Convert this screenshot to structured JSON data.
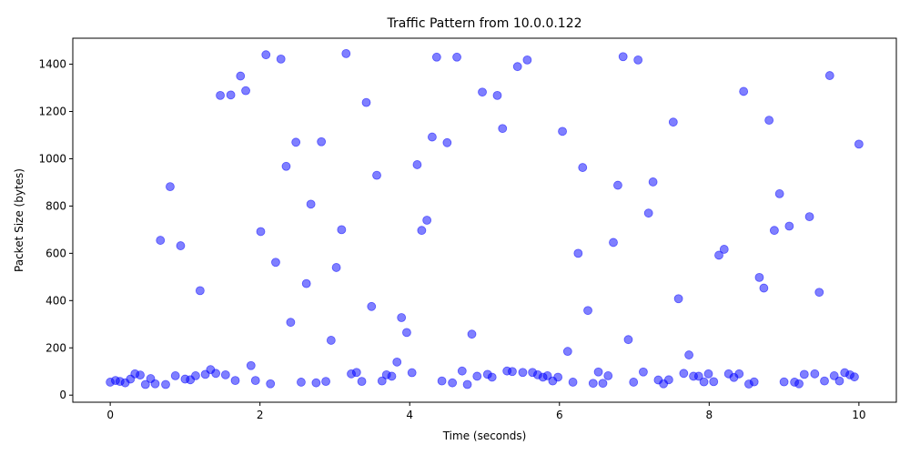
{
  "chart_data": {
    "type": "scatter",
    "title": "Traffic Pattern from 10.0.0.122",
    "xlabel": "Time (seconds)",
    "ylabel": "Packet Size (bytes)",
    "xlim": [
      -0.5,
      10.5
    ],
    "ylim": [
      -30,
      1510
    ],
    "xticks": [
      0,
      2,
      4,
      6,
      8,
      10
    ],
    "yticks": [
      0,
      200,
      400,
      600,
      800,
      1000,
      1200,
      1400
    ],
    "grid": false,
    "point_color": "#0000ff",
    "point_opacity": 0.5,
    "series": [
      {
        "x": [
          0.0,
          0.07,
          0.13,
          0.2,
          0.27,
          0.33,
          0.4,
          0.47,
          0.54,
          0.6,
          0.67,
          0.74,
          0.8,
          0.87,
          0.94,
          1.0,
          1.07,
          1.14,
          1.2,
          1.27,
          1.34,
          1.41,
          1.47,
          1.54,
          1.61,
          1.67,
          1.74,
          1.81,
          1.88,
          1.94,
          2.01,
          2.08,
          2.14,
          2.21,
          2.28,
          2.35,
          2.41,
          2.48,
          2.55,
          2.62,
          2.68,
          2.75,
          2.82,
          2.88,
          2.95,
          3.02,
          3.09,
          3.15,
          3.22,
          3.29,
          3.36,
          3.42,
          3.49,
          3.56,
          3.63,
          3.69,
          3.76,
          3.83,
          3.89,
          3.96,
          4.03,
          4.1,
          4.16,
          4.23,
          4.3,
          4.36,
          4.43,
          4.5,
          4.57,
          4.63,
          4.7,
          4.77,
          4.83,
          4.9,
          4.97,
          5.04,
          5.1,
          5.17,
          5.24,
          5.3,
          5.37,
          5.44,
          5.51,
          5.57,
          5.64,
          5.71,
          5.78,
          5.84,
          5.91,
          5.98,
          6.04,
          6.11,
          6.18,
          6.25,
          6.31,
          6.38,
          6.45,
          6.52,
          6.58,
          6.65,
          6.72,
          6.78,
          6.85,
          6.92,
          6.99,
          7.05,
          7.12,
          7.19,
          7.25,
          7.32,
          7.39,
          7.46,
          7.52,
          7.59,
          7.66,
          7.73,
          7.79,
          7.86,
          7.93,
          7.99,
          8.06,
          8.13,
          8.2,
          8.26,
          8.33,
          8.4,
          8.46,
          8.53,
          8.6,
          8.67,
          8.73,
          8.8,
          8.87,
          8.94,
          9.0,
          9.07,
          9.14,
          9.2,
          9.27,
          9.34,
          9.41,
          9.47,
          9.54,
          9.61,
          9.67,
          9.74,
          9.81,
          9.88,
          9.94,
          10.0
        ],
        "y": [
          55,
          62,
          58,
          52,
          68,
          90,
          85,
          45,
          70,
          48,
          655,
          45,
          882,
          82,
          632,
          68,
          65,
          82,
          442,
          88,
          108,
          92,
          1268,
          86,
          1270,
          62,
          1350,
          1288,
          125,
          62,
          692,
          1440,
          48,
          562,
          1422,
          968,
          308,
          1070,
          55,
          472,
          808,
          52,
          1072,
          58,
          232,
          540,
          700,
          1445,
          90,
          96,
          58,
          1238,
          375,
          930,
          60,
          86,
          80,
          140,
          328,
          265,
          95,
          975,
          697,
          740,
          1092,
          1430,
          60,
          1068,
          52,
          1430,
          102,
          45,
          258,
          80,
          1282,
          88,
          76,
          1268,
          1128,
          102,
          100,
          1390,
          96,
          1418,
          96,
          86,
          76,
          82,
          60,
          76,
          1116,
          185,
          55,
          600,
          963,
          358,
          50,
          98,
          50,
          82,
          646,
          888,
          1432,
          235,
          55,
          1418,
          98,
          770,
          902,
          64,
          48,
          65,
          1155,
          408,
          92,
          170,
          80,
          80,
          56,
          90,
          57,
          592,
          617,
          90,
          75,
          90,
          1285,
          47,
          56,
          498,
          453,
          1163,
          697,
          852,
          56,
          715,
          55,
          48,
          88,
          755,
          90,
          435,
          60,
          1352,
          82,
          60,
          95,
          86,
          77,
          1062
        ]
      }
    ]
  }
}
